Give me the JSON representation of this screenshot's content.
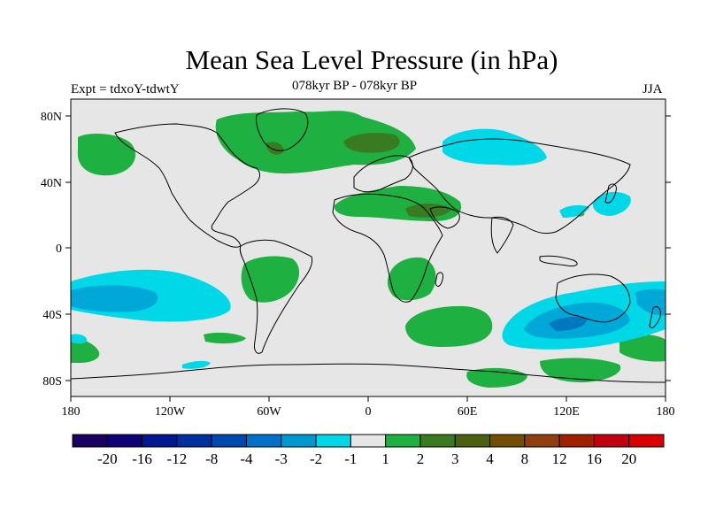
{
  "title": "Mean Sea Level Pressure (in hPa)",
  "subtitle_left": "Expt = tdxoY-tdwtY",
  "subtitle_center": "078kyr BP - 078kyr BP",
  "subtitle_right": "JJA",
  "lat_labels": [
    "80N",
    "40N",
    "0",
    "40S",
    "80S"
  ],
  "lon_labels": [
    "180",
    "120W",
    "60W",
    "0",
    "60E",
    "120E",
    "180"
  ],
  "colors": {
    "background": "#e6e6e6",
    "land_line": "#000000",
    "pos_1_2": "#1eb040",
    "pos_2_3": "#3a7a20",
    "pos_3_4": "#5a6a10",
    "neg_1_2": "#00d8e8",
    "neg_2_3": "#00a8d8"
  },
  "colorbar": {
    "colors": [
      "#1a0060",
      "#100078",
      "#001890",
      "#0030a0",
      "#0048b0",
      "#0070c8",
      "#0098d0",
      "#00d8e8",
      "#e6e6e6",
      "#1eb040",
      "#3a7a20",
      "#4a6010",
      "#705000",
      "#904010",
      "#a02000",
      "#c00010",
      "#d80000"
    ],
    "labels": [
      "-20",
      "-16",
      "-12",
      "-8",
      "-4",
      "-3",
      "-2",
      "-1",
      "1",
      "2",
      "3",
      "4",
      "8",
      "12",
      "16",
      "20"
    ]
  }
}
